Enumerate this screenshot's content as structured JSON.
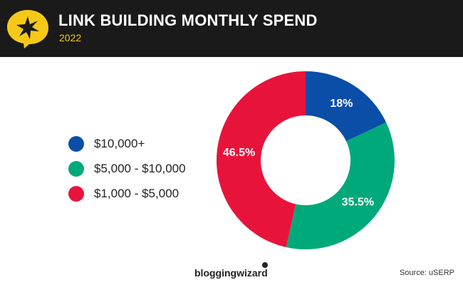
{
  "header": {
    "title": "LINK BUILDING MONTHLY SPEND",
    "subtitle": "2022",
    "logo_icon": "star-burst-speech-bubble-icon"
  },
  "colors": {
    "header_bg": "#1a1a1a",
    "accent_yellow": "#f6c918",
    "blue": "#0a4ea8",
    "green": "#00a97a",
    "red": "#e8133b"
  },
  "chart_data": {
    "type": "pie",
    "donut": true,
    "title": "LINK BUILDING MONTHLY SPEND",
    "subtitle": "2022",
    "legend_position": "left",
    "slices": [
      {
        "label": "$10,000+",
        "value": 18,
        "display": "18%",
        "color": "#0a4ea8"
      },
      {
        "label": "$5,000 - $10,000",
        "value": 35.5,
        "display": "35.5%",
        "color": "#00a97a"
      },
      {
        "label": "$1,000 - $5,000",
        "value": 46.5,
        "display": "46.5%",
        "color": "#e8133b"
      }
    ]
  },
  "footer": {
    "brand": "bloggingwizard",
    "source": "Source: uSERP"
  }
}
